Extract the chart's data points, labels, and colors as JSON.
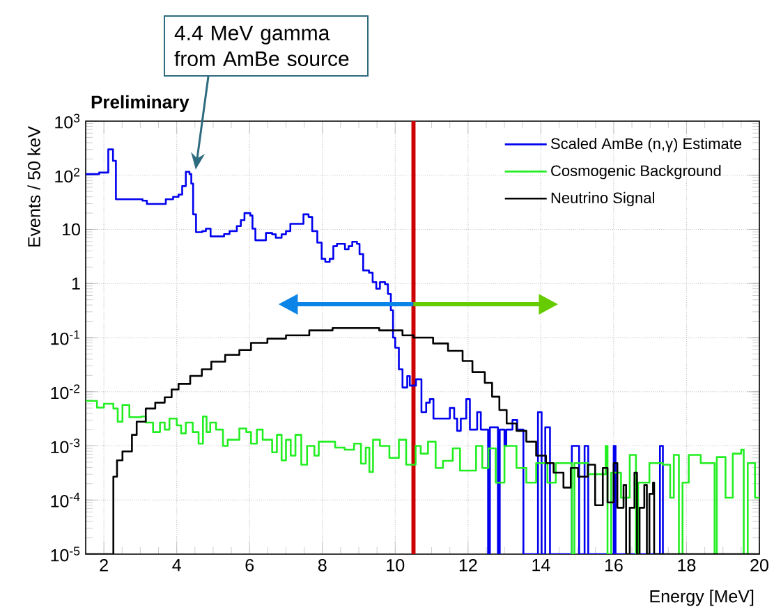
{
  "chart_data": {
    "type": "step",
    "title": "Preliminary",
    "xlabel": "Energy [MeV]",
    "ylabel": "Events / 50 keV",
    "xlim": [
      1.5,
      20
    ],
    "ylim": [
      1e-05,
      1000
    ],
    "log": "y",
    "grid": true,
    "legend": "top right",
    "xticks": [
      2,
      4,
      6,
      8,
      10,
      12,
      14,
      16,
      18,
      20
    ],
    "yticks": [
      {
        "value": 1e-05,
        "label": "10$^{-5}$"
      },
      {
        "value": 0.0001,
        "label": "10$^{-4}$"
      },
      {
        "value": 0.001,
        "label": "10$^{-3}$"
      },
      {
        "value": 0.01,
        "label": "10$^{-2}$"
      },
      {
        "value": 0.1,
        "label": "10$^{-1}$"
      },
      {
        "value": 1,
        "label": "1"
      },
      {
        "value": 10,
        "label": "10"
      },
      {
        "value": 100,
        "label": "10$^{2}$"
      },
      {
        "value": 1000,
        "label": "10$^{3}$"
      }
    ],
    "ref_lines": [
      {
        "axis": "x",
        "value": 10.5,
        "color": "#cc0000"
      }
    ],
    "annotations": [
      "4.4 MeV gamma from AmBe source"
    ],
    "series": [
      {
        "name": "Scaled AmBe (n,γ) Estimate",
        "color": "#0000ee",
        "x": [
          1.5,
          1.87,
          2.12,
          2.25,
          2.33,
          3.06,
          3.18,
          3.7,
          3.9,
          4.05,
          4.15,
          4.25,
          4.35,
          4.4,
          4.45,
          4.53,
          4.7,
          4.8,
          4.93,
          5.3,
          5.45,
          5.65,
          5.76,
          5.86,
          6.02,
          6.08,
          6.16,
          6.45,
          6.62,
          6.72,
          6.88,
          7.0,
          7.12,
          7.48,
          7.62,
          7.72,
          7.86,
          7.98,
          8.08,
          8.2,
          8.3,
          8.4,
          8.62,
          8.72,
          8.82,
          8.95,
          9.02,
          9.12,
          9.28,
          9.38,
          9.48,
          9.58,
          9.72,
          9.8,
          9.88,
          9.94,
          10.0,
          10.1,
          10.2,
          10.33,
          10.4,
          10.57,
          10.72,
          10.85,
          10.95,
          11.05,
          11.5,
          11.62,
          11.7,
          11.8,
          11.95,
          12.05,
          12.25,
          12.35,
          12.55,
          12.6,
          12.82,
          12.87,
          13.0,
          13.05,
          13.22,
          13.35,
          13.52,
          13.92,
          14.02,
          14.12,
          14.25,
          14.85,
          15.05,
          15.2,
          15.3,
          16.0,
          16.05,
          17.27,
          17.35
        ],
        "values": [
          105,
          112,
          300,
          185,
          36,
          34,
          29.5,
          36,
          40,
          44,
          63,
          116,
          105,
          70,
          19,
          8.9,
          9.3,
          10.3,
          7.4,
          8.2,
          9.3,
          11.5,
          14.8,
          20,
          18,
          10.3,
          6.3,
          8.6,
          8.1,
          7.0,
          8.1,
          9.3,
          12.7,
          19,
          17,
          9.3,
          5.7,
          2.85,
          2.5,
          2.85,
          4.9,
          5.4,
          4.3,
          4.9,
          5.9,
          5.4,
          3.5,
          1.74,
          1.58,
          1.06,
          0.8,
          1.06,
          0.97,
          0.64,
          0.32,
          0.1,
          0.065,
          0.026,
          0.012,
          0.0195,
          0.013,
          0.017,
          0.0042,
          0.0063,
          0.0073,
          0.0032,
          0.005,
          0.0032,
          0.0019,
          0.0032,
          0.0073,
          0.002,
          0.0042,
          0.002,
          1e-05,
          0.0022,
          1e-05,
          0.002,
          0.001,
          0.002,
          0.003,
          0.002,
          1e-05,
          0.0042,
          1e-05,
          0.0022,
          1e-05,
          0.001,
          1e-05,
          0.001,
          1e-05,
          0.001,
          1e-05,
          0.001,
          1e-05
        ]
      },
      {
        "name": "Cosmogenic Background",
        "color": "#22ee22",
        "x": [
          1.5,
          1.81,
          2.0,
          2.26,
          2.38,
          2.51,
          2.7,
          3.03,
          3.15,
          3.35,
          3.54,
          3.67,
          3.8,
          4.0,
          4.12,
          4.25,
          4.44,
          4.6,
          4.72,
          4.82,
          4.92,
          5.08,
          5.27,
          5.4,
          5.72,
          5.91,
          6.04,
          6.2,
          6.36,
          6.62,
          6.75,
          6.88,
          7.0,
          7.13,
          7.26,
          7.42,
          7.58,
          7.78,
          7.9,
          8.35,
          8.61,
          8.87,
          9.06,
          9.19,
          9.29,
          9.39,
          9.58,
          9.84,
          10.1,
          10.3,
          10.56,
          10.7,
          10.9,
          11.11,
          11.31,
          11.58,
          11.78,
          12.22,
          12.39,
          12.56,
          12.76,
          13.0,
          13.33,
          13.6,
          13.87,
          14.18,
          14.41,
          14.85,
          14.92,
          15.29,
          15.78,
          15.83,
          15.93,
          16.2,
          16.44,
          16.61,
          16.67,
          16.98,
          17.35,
          17.55,
          17.65,
          17.79,
          17.89,
          18.06,
          18.39,
          18.77,
          18.83,
          19.07,
          19.27,
          19.5,
          19.57,
          19.68,
          19.88,
          20
        ],
        "values": [
          0.0068,
          0.0051,
          0.006,
          0.0049,
          0.0028,
          0.0057,
          0.0034,
          0.0035,
          0.0027,
          0.0018,
          0.0027,
          0.002,
          0.0032,
          0.0024,
          0.0017,
          0.0027,
          0.0018,
          0.0011,
          0.0035,
          0.0018,
          0.0027,
          0.002,
          0.001,
          0.0013,
          0.0021,
          0.0018,
          0.0011,
          0.002,
          0.0013,
          0.00076,
          0.0016,
          0.00054,
          0.0013,
          0.00066,
          0.0016,
          0.00045,
          0.001,
          0.00066,
          0.0012,
          0.00093,
          0.00085,
          0.0011,
          0.00047,
          0.00093,
          0.00033,
          0.0013,
          0.001,
          0.0006,
          0.0013,
          0.00045,
          0.001,
          0.00072,
          0.0012,
          0.00039,
          0.00053,
          0.0009,
          0.00035,
          0.001,
          0.00039,
          0.0009,
          0.00021,
          0.001,
          0.00039,
          0.00021,
          0.00048,
          0.00021,
          0.00048,
          1e-05,
          0.00048,
          0.0003,
          0.001,
          1e-05,
          0.00032,
          0.00011,
          0.00068,
          1e-05,
          0.00021,
          0.00048,
          0.00045,
          0.00011,
          0.00068,
          1e-05,
          0.00021,
          0.00068,
          0.00048,
          1e-05,
          0.00062,
          0.00011,
          0.00072,
          0.00085,
          1e-05,
          0.00048,
          0.00011,
          0.00011
        ]
      },
      {
        "name": "Neutrino Signal",
        "color": "#000000",
        "x": [
          1.5,
          2.26,
          2.36,
          2.51,
          2.77,
          2.9,
          3.15,
          3.41,
          3.67,
          3.86,
          4.05,
          4.37,
          4.69,
          4.95,
          5.33,
          5.72,
          6.04,
          6.49,
          7.0,
          7.64,
          8.28,
          8.92,
          9.56,
          10.2,
          10.5,
          11.04,
          11.45,
          11.85,
          12.12,
          12.46,
          12.66,
          12.86,
          13.06,
          13.33,
          13.6,
          13.87,
          14.14,
          14.35,
          14.62,
          14.82,
          15.02,
          15.29,
          15.49,
          15.7,
          15.83,
          16.0,
          16.1,
          16.27,
          16.34,
          16.44,
          16.57,
          16.64,
          16.71,
          16.84,
          16.91,
          16.98,
          17.08,
          17.11,
          20
        ],
        "values": [
          1e-05,
          0.00027,
          0.00054,
          0.00079,
          0.0016,
          0.0028,
          0.0049,
          0.0063,
          0.0079,
          0.011,
          0.014,
          0.0196,
          0.026,
          0.036,
          0.048,
          0.059,
          0.08,
          0.096,
          0.11,
          0.136,
          0.15,
          0.15,
          0.136,
          0.11,
          0.1,
          0.078,
          0.057,
          0.037,
          0.023,
          0.0146,
          0.0081,
          0.0046,
          0.0026,
          0.0019,
          0.0012,
          0.00066,
          0.00048,
          0.00032,
          0.00017,
          0.00039,
          0.00027,
          0.00045,
          8e-05,
          0.00039,
          9e-05,
          0.00048,
          7.2e-05,
          0.00019,
          1e-05,
          7.2e-05,
          0.00032,
          1e-05,
          7.2e-05,
          0.00019,
          1e-05,
          0.00013,
          0.00021,
          1e-05,
          1e-05
        ]
      }
    ]
  }
}
